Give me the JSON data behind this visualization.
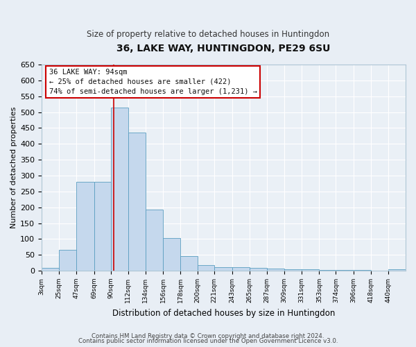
{
  "title": "36, LAKE WAY, HUNTINGDON, PE29 6SU",
  "subtitle": "Size of property relative to detached houses in Huntingdon",
  "xlabel": "Distribution of detached houses by size in Huntingdon",
  "ylabel": "Number of detached properties",
  "bin_edges": [
    3,
    25,
    47,
    69,
    90,
    112,
    134,
    156,
    178,
    200,
    221,
    243,
    265,
    287,
    309,
    331,
    353,
    374,
    396,
    418,
    440,
    462
  ],
  "bar_heights": [
    8,
    65,
    280,
    280,
    515,
    435,
    192,
    102,
    46,
    18,
    12,
    10,
    8,
    6,
    5,
    4,
    3,
    2,
    2,
    1,
    4
  ],
  "bar_fill": "#c5d8ed",
  "bar_edge": "#5a9ec0",
  "red_line_x": 94,
  "ylim": [
    0,
    650
  ],
  "yticks": [
    0,
    50,
    100,
    150,
    200,
    250,
    300,
    350,
    400,
    450,
    500,
    550,
    600,
    650
  ],
  "xtick_labels": [
    "3sqm",
    "25sqm",
    "47sqm",
    "69sqm",
    "90sqm",
    "112sqm",
    "134sqm",
    "156sqm",
    "178sqm",
    "200sqm",
    "221sqm",
    "243sqm",
    "265sqm",
    "287sqm",
    "309sqm",
    "331sqm",
    "353sqm",
    "374sqm",
    "396sqm",
    "418sqm",
    "440sqm"
  ],
  "annotation_title": "36 LAKE WAY: 94sqm",
  "annotation_line1": "← 25% of detached houses are smaller (422)",
  "annotation_line2": "74% of semi-detached houses are larger (1,231) →",
  "footer1": "Contains HM Land Registry data © Crown copyright and database right 2024.",
  "footer2": "Contains public sector information licensed under the Open Government Licence v3.0.",
  "bg_color": "#e8eef5",
  "plot_bg": "#eaf0f6",
  "grid_color": "#ffffff",
  "spine_color": "#aec6d4"
}
